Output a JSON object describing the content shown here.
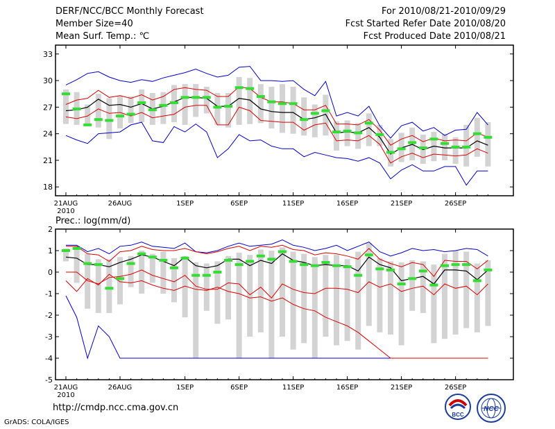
{
  "header": {
    "title": "DERF/NCC/BCC Monthly Forecast",
    "member_size": "Member Size=40",
    "variable": "Mean Surf. Temp.: ℃",
    "period": "For 2010/08/21-2010/09/29",
    "started": "Fcst Started Refer Date 2010/08/20",
    "produced": "Fcst Produced Date 2010/08/21"
  },
  "footer": {
    "url": "http://cmdp.ncc.cma.gov.cn",
    "credit": "GrADS: COLA/IGES",
    "logo_bcc": "BCC",
    "logo_ncc": "NCC"
  },
  "colors": {
    "box": "#d3d3d3",
    "median": "#33dd33",
    "mean": "#000000",
    "sd": "#dd0000",
    "ext": "#0000cc"
  },
  "chart_data": [
    {
      "type": "box",
      "title": "Mean Surf. Temp.: ℃",
      "ylim": [
        17,
        34
      ],
      "yticks": [
        18,
        21,
        24,
        27,
        30,
        33
      ],
      "xticks": [
        {
          "day": 0,
          "label": "21AUG",
          "label2": "2010"
        },
        {
          "day": 5,
          "label": "26AUG"
        },
        {
          "day": 11,
          "label": "1SEP"
        },
        {
          "day": 16,
          "label": "6SEP"
        },
        {
          "day": 21,
          "label": "11SEP"
        },
        {
          "day": 26,
          "label": "16SEP"
        },
        {
          "day": 31,
          "label": "21SEP"
        },
        {
          "day": 36,
          "label": "26SEP"
        }
      ],
      "days": 40,
      "mean": [
        26.6,
        26.7,
        27.0,
        27.9,
        27.2,
        27.3,
        27.0,
        27.4,
        26.8,
        27.1,
        27.6,
        28.1,
        28.1,
        28.0,
        27.1,
        27.1,
        28.0,
        27.8,
        26.8,
        26.5,
        26.4,
        26.4,
        25.6,
        25.8,
        26.2,
        24.1,
        24.2,
        24.1,
        24.7,
        23.6,
        21.7,
        22.4,
        22.8,
        22.2,
        22.6,
        22.4,
        22.4,
        22.4,
        23.2,
        22.7
      ],
      "plus_sd": [
        27.3,
        27.8,
        28.0,
        28.9,
        28.1,
        28.3,
        28.0,
        28.4,
        27.8,
        28.2,
        29.0,
        29.2,
        29.0,
        28.9,
        28.2,
        28.2,
        29.3,
        29.1,
        28.1,
        27.6,
        27.6,
        27.4,
        26.7,
        26.7,
        27.2,
        25.1,
        25.1,
        25.0,
        25.6,
        24.4,
        22.7,
        23.4,
        23.8,
        23.1,
        23.5,
        23.2,
        23.3,
        23.2,
        24.1,
        23.6
      ],
      "minus_sd": [
        25.9,
        25.7,
        26.0,
        26.8,
        26.3,
        26.4,
        26.0,
        26.4,
        25.8,
        26.0,
        26.2,
        27.0,
        27.2,
        27.2,
        25.0,
        25.0,
        27.0,
        26.6,
        25.5,
        25.4,
        25.3,
        25.3,
        24.4,
        25.0,
        25.2,
        23.2,
        23.3,
        23.2,
        23.8,
        22.8,
        20.7,
        21.4,
        21.8,
        21.3,
        21.7,
        21.6,
        21.5,
        21.6,
        22.3,
        21.8
      ],
      "max": [
        29.5,
        30.1,
        30.8,
        31.0,
        30.4,
        30.0,
        29.8,
        30.1,
        29.9,
        30.3,
        30.6,
        30.9,
        31.3,
        30.8,
        30.4,
        30.6,
        31.5,
        31.6,
        30.0,
        30.0,
        29.9,
        30.0,
        29.0,
        28.3,
        29.9,
        26.0,
        26.4,
        26.0,
        27.1,
        24.9,
        23.5,
        24.9,
        25.3,
        24.3,
        24.7,
        23.8,
        24.4,
        24.5,
        26.4,
        25.0
      ],
      "min": [
        23.8,
        23.3,
        22.9,
        24.0,
        24.1,
        24.2,
        25.0,
        25.3,
        23.2,
        23.0,
        24.8,
        24.2,
        25.1,
        24.2,
        21.3,
        22.3,
        23.9,
        23.2,
        23.3,
        22.6,
        22.3,
        22.3,
        21.4,
        21.9,
        21.6,
        21.3,
        21.2,
        20.9,
        21.3,
        20.7,
        18.9,
        19.9,
        20.5,
        19.8,
        19.8,
        20.3,
        20.3,
        18.2,
        19.8,
        19.8
      ],
      "median": [
        28.5,
        26.8,
        25.0,
        25.6,
        25.5,
        26.0,
        26.2,
        27.5,
        26.7,
        27.2,
        27.5,
        28.1,
        28.1,
        28.1,
        27.0,
        27.1,
        29.2,
        29.1,
        28.2,
        27.6,
        27.4,
        27.4,
        25.6,
        26.3,
        26.6,
        24.2,
        24.3,
        24.1,
        25.2,
        23.9,
        21.9,
        22.3,
        23.0,
        22.4,
        23.4,
        22.9,
        22.5,
        22.5,
        24.0,
        23.6
      ],
      "box_top": [
        29.0,
        28.7,
        27.3,
        28.5,
        28.0,
        28.3,
        28.2,
        29.0,
        28.6,
        28.7,
        29.5,
        29.6,
        29.6,
        29.3,
        28.6,
        28.6,
        30.4,
        30.3,
        29.6,
        29.3,
        29.6,
        29.3,
        28.1,
        27.3,
        28.4,
        25.4,
        25.5,
        25.2,
        26.3,
        25.0,
        23.4,
        24.1,
        24.7,
        23.9,
        24.2,
        24.0,
        23.6,
        25.0,
        25.8,
        25.3
      ],
      "box_bot": [
        25.1,
        25.0,
        24.9,
        24.7,
        23.4,
        24.6,
        25.2,
        25.3,
        25.0,
        25.1,
        25.3,
        25.0,
        25.9,
        26.3,
        25.0,
        24.7,
        25.0,
        25.1,
        25.2,
        24.6,
        24.1,
        24.0,
        23.8,
        23.6,
        23.8,
        22.1,
        22.6,
        22.3,
        22.6,
        22.6,
        20.3,
        20.8,
        21.0,
        20.6,
        20.9,
        21.0,
        20.6,
        20.3,
        21.4,
        20.3
      ]
    },
    {
      "type": "box",
      "title": "Prec.: log(mm/d)",
      "ylim": [
        -5,
        2
      ],
      "yticks": [
        -5,
        -4,
        -3,
        -2,
        -1,
        0,
        1,
        2
      ],
      "xticks": [
        {
          "day": 0,
          "label": "21AUG",
          "label2": "2010"
        },
        {
          "day": 5,
          "label": "26AUG"
        },
        {
          "day": 11,
          "label": "1SEP"
        },
        {
          "day": 16,
          "label": "6SEP"
        },
        {
          "day": 21,
          "label": "11SEP"
        },
        {
          "day": 26,
          "label": "16SEP"
        },
        {
          "day": 31,
          "label": "21SEP"
        },
        {
          "day": 36,
          "label": "26SEP"
        }
      ],
      "days": 40,
      "mean": [
        0.7,
        0.65,
        0.35,
        0.35,
        0.25,
        0.45,
        0.6,
        0.8,
        0.7,
        0.5,
        0.3,
        0.7,
        0.3,
        0.2,
        0.3,
        0.6,
        0.6,
        0.3,
        0.55,
        0.4,
        0.85,
        0.55,
        0.45,
        0.3,
        0.35,
        0.3,
        0.3,
        0.05,
        0.7,
        0.35,
        0.2,
        -0.4,
        -0.3,
        -0.2,
        -0.55,
        0.1,
        0.1,
        0.05,
        -0.35,
        0.1
      ],
      "plus_sd": [
        1.2,
        1.2,
        0.85,
        0.8,
        0.5,
        0.95,
        1.0,
        1.2,
        1.05,
        1.0,
        1.0,
        1.1,
        0.95,
        0.85,
        0.95,
        1.1,
        1.2,
        1.0,
        1.2,
        1.15,
        1.25,
        1.05,
        1.0,
        0.8,
        0.9,
        0.85,
        0.75,
        0.6,
        1.1,
        0.6,
        0.4,
        0.25,
        0.45,
        0.35,
        -0.2,
        0.55,
        0.5,
        0.5,
        0.15,
        0.55
      ],
      "minus_sd": [
        0.0,
        0.0,
        -0.4,
        -0.55,
        -0.25,
        -0.2,
        -0.1,
        0.1,
        -0.15,
        -0.3,
        -0.45,
        -0.15,
        -0.65,
        -0.8,
        -0.8,
        -0.5,
        -0.55,
        -1.05,
        -0.7,
        -1.2,
        -0.55,
        -0.8,
        -0.95,
        -1.0,
        -0.75,
        -0.75,
        -0.8,
        -0.95,
        -0.45,
        -0.7,
        -0.55,
        -0.9,
        -0.75,
        -0.65,
        -1.05,
        -0.55,
        -0.75,
        -0.65,
        -1.05,
        -0.55
      ],
      "max": [
        1.25,
        1.25,
        0.95,
        1.1,
        0.85,
        1.2,
        1.25,
        1.4,
        1.2,
        1.15,
        1.1,
        1.35,
        0.95,
        0.9,
        1.0,
        1.2,
        1.35,
        1.2,
        1.25,
        1.3,
        1.5,
        1.25,
        1.15,
        1.0,
        1.1,
        1.25,
        1.0,
        1.2,
        1.4,
        0.95,
        0.75,
        0.9,
        1.1,
        1.0,
        1.05,
        0.95,
        1.0,
        1.1,
        1.05,
        0.75
      ],
      "min": [
        -1.1,
        -2.1,
        -4.0,
        -2.5,
        -3.0,
        -4.0,
        -4.0,
        -4.0,
        -4.0,
        -4.0,
        -4.0,
        -4.0,
        -4.0,
        -4.0,
        -4.0,
        -4.0,
        -4.0,
        -4.0,
        -4.0,
        -4.0,
        -4.0,
        -4.0,
        -4.0,
        -4.0,
        -4.0,
        -4.0,
        -4.0,
        -4.0,
        -4.0,
        -4.0,
        -4.0,
        -4.0,
        -4.0,
        -4.0,
        -4.0,
        -4.0,
        -4.0,
        -4.0,
        -4.0,
        -4.0
      ],
      "extra_line": [
        -0.4,
        -0.9,
        -0.3,
        -0.6,
        -0.1,
        -0.45,
        -0.5,
        -0.4,
        -0.6,
        -0.75,
        -0.85,
        -0.65,
        -0.8,
        -0.85,
        -0.7,
        -0.9,
        -1.0,
        -1.2,
        -1.15,
        -1.35,
        -1.2,
        -1.5,
        -1.7,
        -1.8,
        -2.1,
        -2.3,
        -2.5,
        -2.8,
        -3.2,
        -3.6,
        -4.0,
        -4.0,
        -4.0,
        -4.0,
        -4.0,
        -4.0,
        -4.0,
        -4.0,
        -4.0,
        -4.0
      ],
      "median": [
        1.0,
        1.1,
        0.4,
        0.35,
        -0.75,
        -0.3,
        0.4,
        0.85,
        0.7,
        0.55,
        0.2,
        0.65,
        -0.15,
        -0.15,
        0.0,
        0.55,
        0.35,
        0.5,
        0.75,
        0.6,
        0.95,
        0.5,
        0.35,
        0.3,
        0.45,
        0.3,
        0.25,
        -0.15,
        0.8,
        0.15,
        0.1,
        -0.55,
        -0.3,
        0.05,
        -0.6,
        0.3,
        0.35,
        0.35,
        -0.4,
        0.1
      ],
      "box_top": [
        1.1,
        1.2,
        0.85,
        0.6,
        0.6,
        0.7,
        0.75,
        1.0,
        0.85,
        0.95,
        0.65,
        0.75,
        0.45,
        0.4,
        0.5,
        0.75,
        0.9,
        0.8,
        1.05,
        1.0,
        1.15,
        0.95,
        0.85,
        0.7,
        0.8,
        0.8,
        0.6,
        0.95,
        1.35,
        0.65,
        0.5,
        0.45,
        0.55,
        0.5,
        0.35,
        0.85,
        1.0,
        0.95,
        0.4,
        0.55
      ],
      "box_bot": [
        0.5,
        -0.5,
        -1.7,
        -1.9,
        -1.9,
        -1.5,
        -0.7,
        -1.0,
        -0.5,
        -1.0,
        -1.4,
        -2.1,
        -4.0,
        -1.8,
        -2.4,
        -2.2,
        -4.0,
        -3.0,
        -2.8,
        -4.0,
        -3.0,
        -3.6,
        -3.3,
        -4.0,
        -3.0,
        -3.4,
        -3.2,
        -3.6,
        -2.5,
        -2.8,
        -2.9,
        -3.4,
        -1.8,
        -1.9,
        -3.3,
        -3.1,
        -2.9,
        -2.6,
        -2.8,
        -2.5
      ]
    }
  ]
}
